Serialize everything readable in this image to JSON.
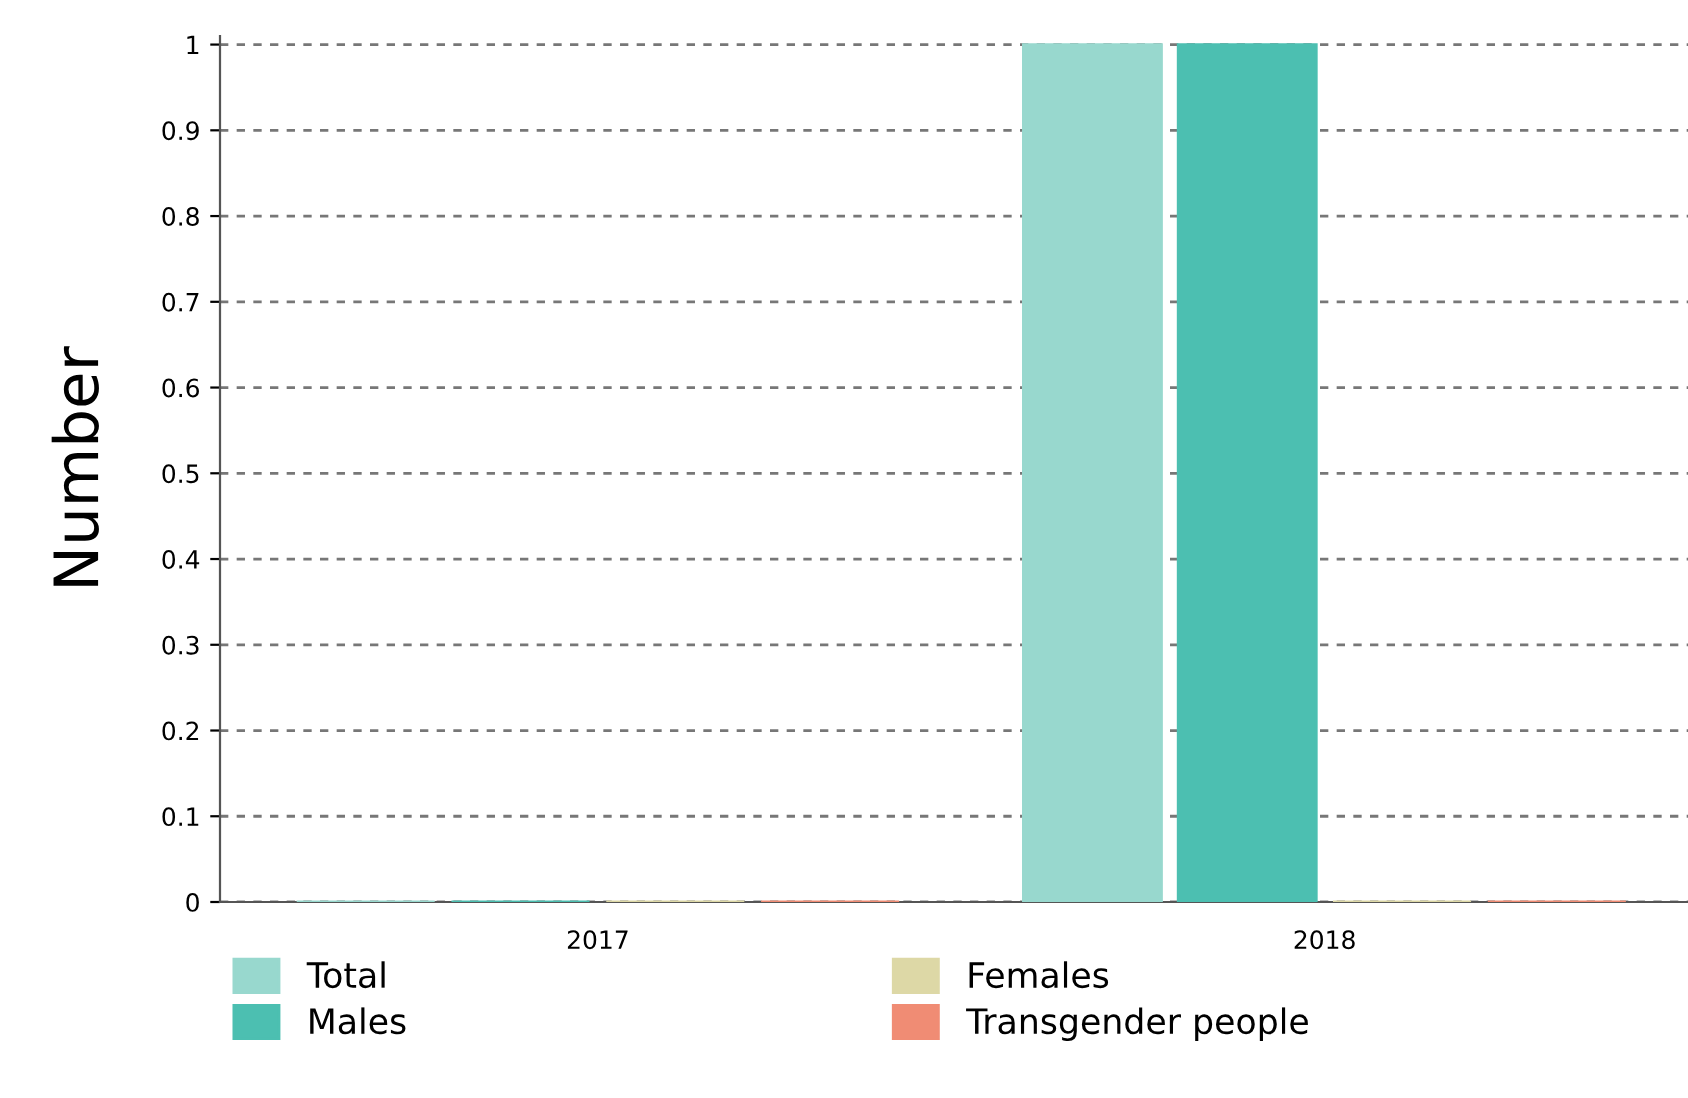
{
  "chart_data": {
    "type": "bar",
    "ylabel": "Number",
    "categories": [
      "2017",
      "2018"
    ],
    "series": [
      {
        "name": "Total",
        "color": "#98d8ce",
        "values": [
          0,
          1
        ]
      },
      {
        "name": "Males",
        "color": "#4cbfb1",
        "values": [
          0,
          1
        ]
      },
      {
        "name": "Females",
        "color": "#ddd8a6",
        "values": [
          0,
          0
        ]
      },
      {
        "name": "Transgender people",
        "color": "#f08c74",
        "values": [
          0,
          0
        ]
      }
    ],
    "ylim": [
      0,
      1.01
    ],
    "yticks": [
      0,
      0.1,
      0.2,
      0.3,
      0.4,
      0.5,
      0.6,
      0.7,
      0.8,
      0.9,
      1
    ],
    "grid": "y",
    "legend": "bottom"
  }
}
